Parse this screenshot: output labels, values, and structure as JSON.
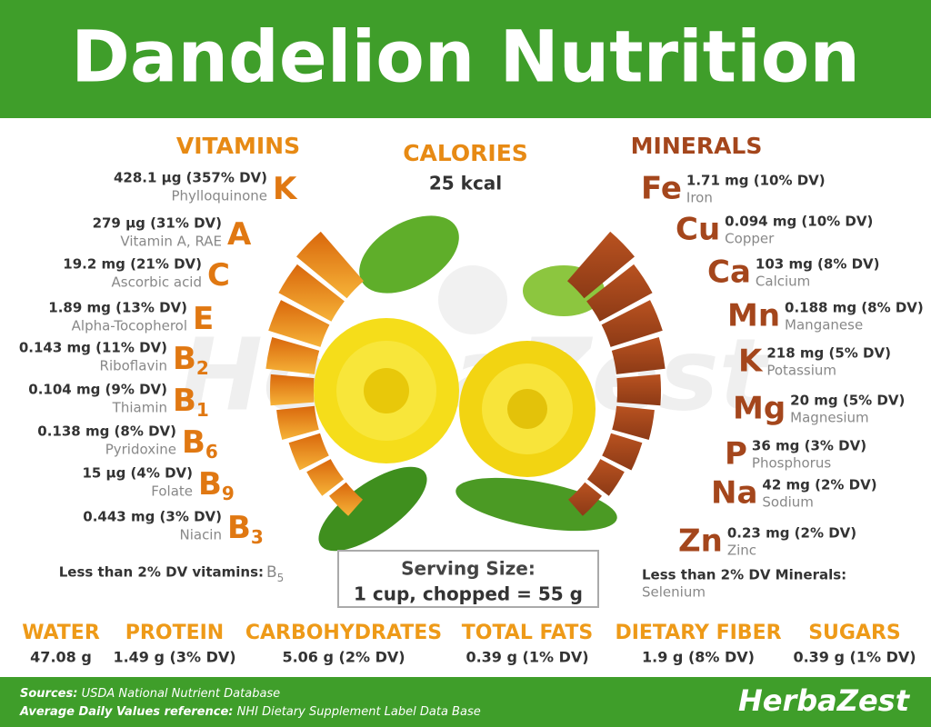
{
  "header": {
    "title": "Dandelion Nutrition"
  },
  "watermark": "HerbaZest",
  "vitamins": {
    "heading": "VITAMINS",
    "items": [
      {
        "amount": "428.1 µg (357% DV)",
        "name": "Phylloquinone",
        "symbol": "K"
      },
      {
        "amount": "279 µg (31% DV)",
        "name": "Vitamin A, RAE",
        "symbol": "A"
      },
      {
        "amount": "19.2 mg (21% DV)",
        "name": "Ascorbic acid",
        "symbol": "C"
      },
      {
        "amount": "1.89 mg (13% DV)",
        "name": "Alpha-Tocopherol",
        "symbol": "E"
      },
      {
        "amount": "0.143 mg (11% DV)",
        "name": "Riboflavin",
        "symbol": "B",
        "sub": "2"
      },
      {
        "amount": "0.104 mg (9% DV)",
        "name": "Thiamin",
        "symbol": "B",
        "sub": "1"
      },
      {
        "amount": "0.138 mg (8% DV)",
        "name": "Pyridoxine",
        "symbol": "B",
        "sub": "6"
      },
      {
        "amount": "15 µg (4% DV)",
        "name": "Folate",
        "symbol": "B",
        "sub": "9"
      },
      {
        "amount": "0.443 mg (3% DV)",
        "name": "Niacin",
        "symbol": "B",
        "sub": "3"
      }
    ],
    "less_than": {
      "label": "Less than 2% DV vitamins:",
      "symbol": "B",
      "sub": "5"
    }
  },
  "calories": {
    "heading": "CALORIES",
    "value": "25 kcal"
  },
  "minerals": {
    "heading": "MINERALS",
    "items": [
      {
        "symbol": "Fe",
        "amount": "1.71 mg (10% DV)",
        "name": "Iron"
      },
      {
        "symbol": "Cu",
        "amount": "0.094 mg (10% DV)",
        "name": "Copper"
      },
      {
        "symbol": "Ca",
        "amount": "103 mg (8% DV)",
        "name": "Calcium"
      },
      {
        "symbol": "Mn",
        "amount": "0.188 mg (8% DV)",
        "name": "Manganese"
      },
      {
        "symbol": "K",
        "amount": "218 mg (5% DV)",
        "name": "Potassium"
      },
      {
        "symbol": "Mg",
        "amount": "20 mg (5% DV)",
        "name": "Magnesium"
      },
      {
        "symbol": "P",
        "amount": "36 mg (3% DV)",
        "name": "Phosphorus"
      },
      {
        "symbol": "Na",
        "amount": "42 mg (2% DV)",
        "name": "Sodium"
      },
      {
        "symbol": "Zn",
        "amount": "0.23 mg (2% DV)",
        "name": "Zinc"
      }
    ],
    "less_than": {
      "label": "Less than 2% DV Minerals:",
      "value": "Selenium"
    }
  },
  "serving": {
    "label": "Serving Size:",
    "value": "1 cup, chopped = 55 g"
  },
  "macros": [
    {
      "label": "WATER",
      "value": "47.08 g"
    },
    {
      "label": "PROTEIN",
      "value": "1.49 g (3% DV)"
    },
    {
      "label": "CARBOHYDRATES",
      "value": "5.06 g (2% DV)"
    },
    {
      "label": "TOTAL FATS",
      "value": "0.39 g (1% DV)"
    },
    {
      "label": "DIETARY FIBER",
      "value": "1.9 g (8% DV)"
    },
    {
      "label": "SUGARS",
      "value": "0.39 g (1% DV)"
    }
  ],
  "footer": {
    "sources_label": "Sources:",
    "sources": "USDA National Nutrient Database",
    "reference_label": "Average Daily Values reference:",
    "reference": "NHI Dietary Supplement Label Data Base",
    "brand": "HerbaZest"
  }
}
